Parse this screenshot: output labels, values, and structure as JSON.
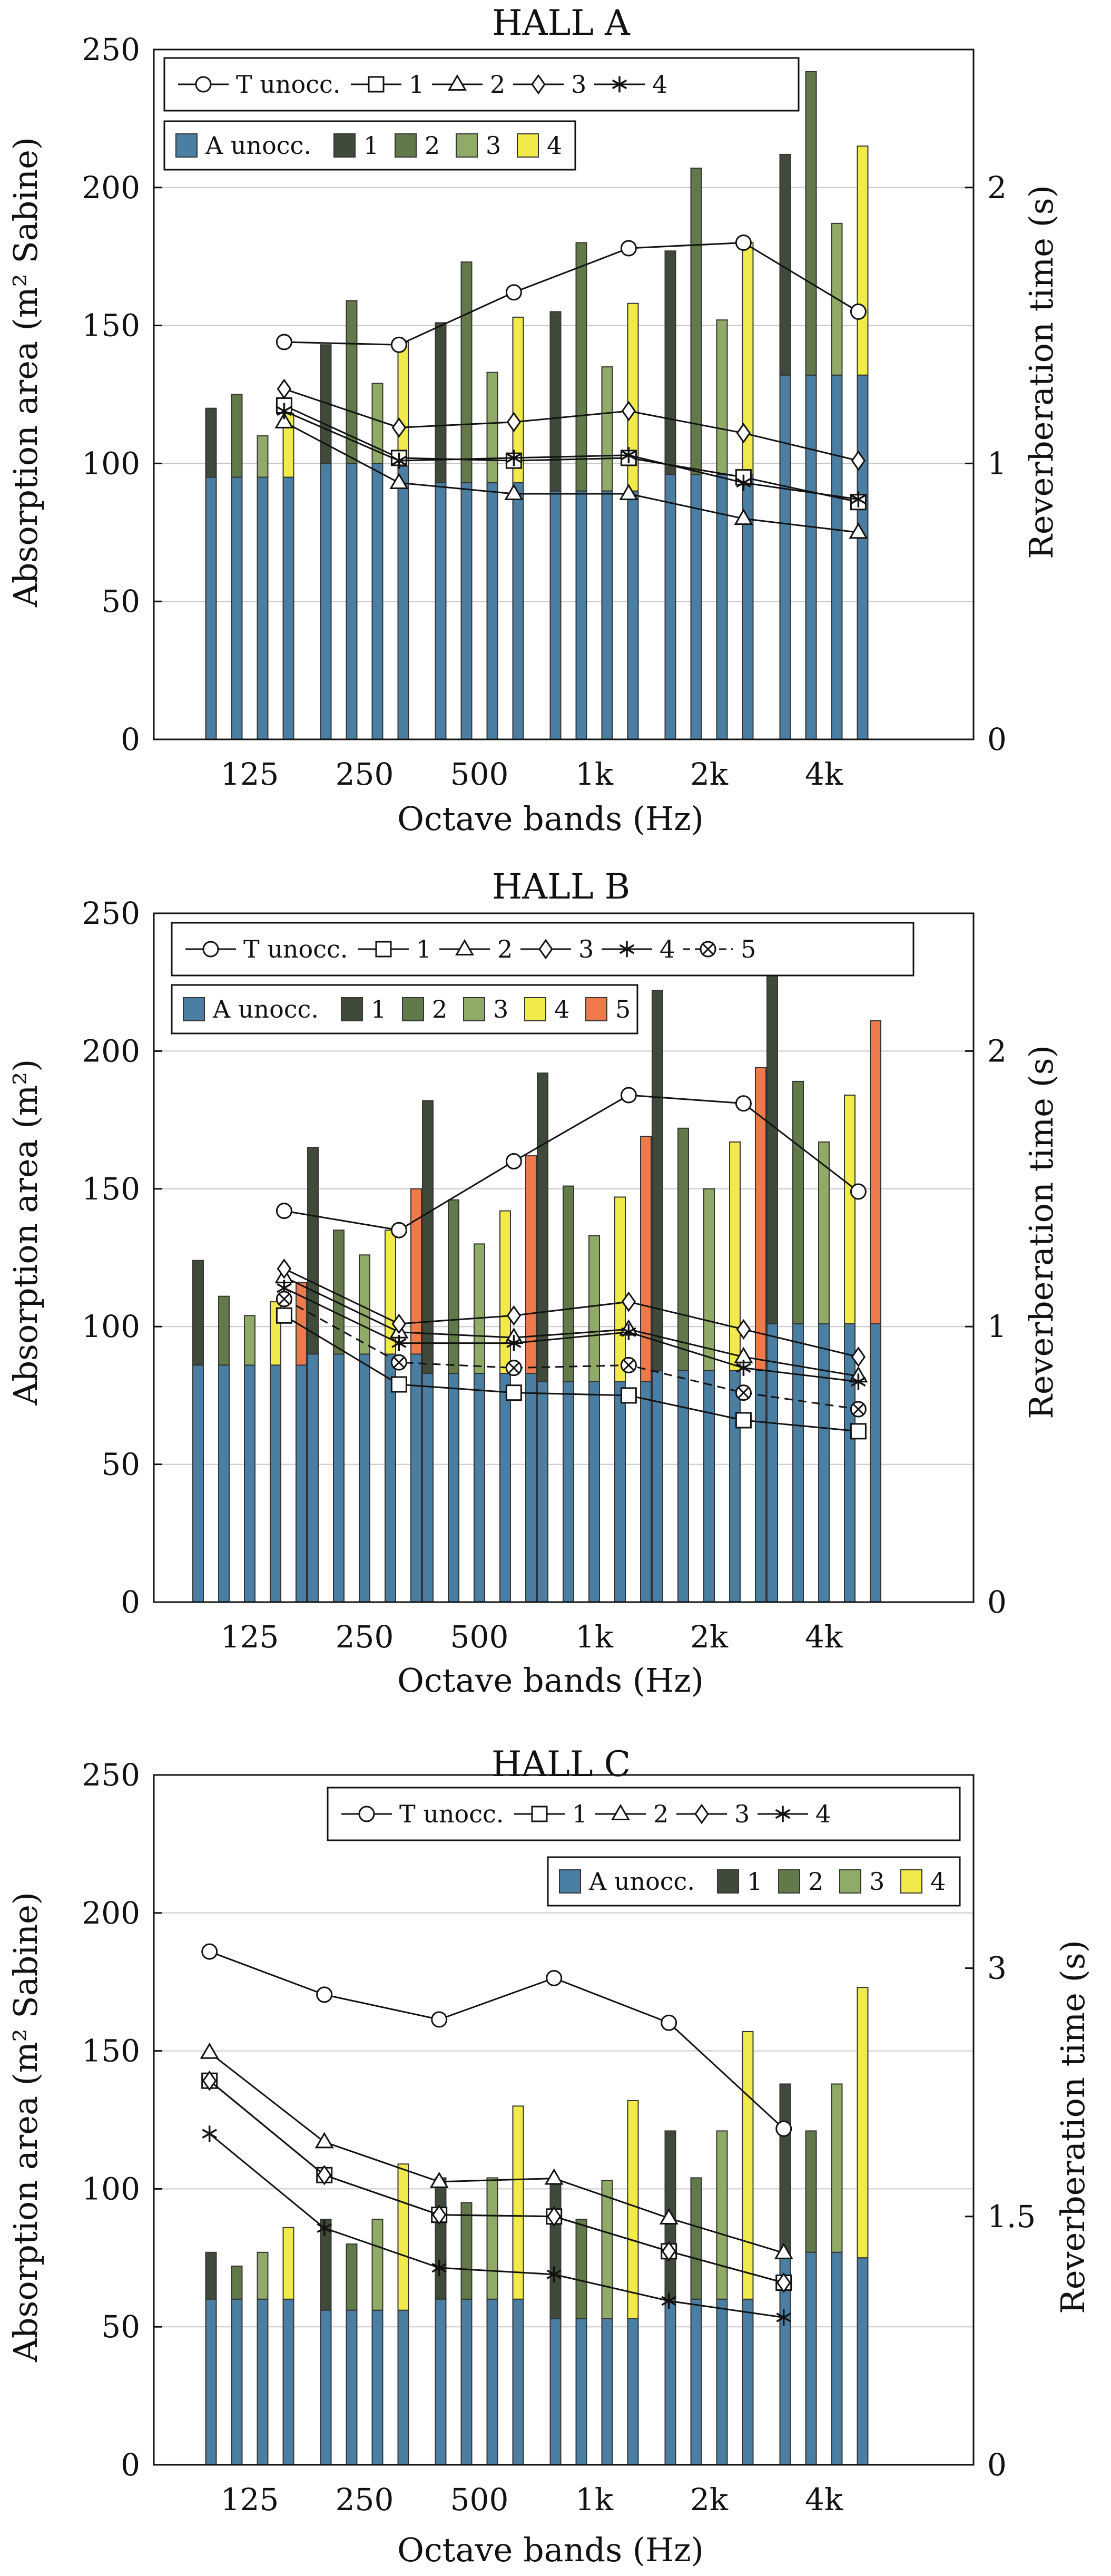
{
  "colors": {
    "A unocc.": "#4a7fa3",
    "1": "#3f4a3a",
    "2": "#627a4a",
    "3": "#90aa68",
    "4": "#f2ea4b",
    "5": "#ee7a4c",
    "grid": "#c7c7c7"
  },
  "x_label": "Octave bands (Hz)",
  "chart_data": [
    {
      "type": "bar",
      "title": "HALL A",
      "categories": [
        "125",
        "250",
        "500",
        "1k",
        "2k",
        "4k"
      ],
      "ylabel": "Absorption area (m² Sabine)",
      "ylabel2": "Reverberation time (s)",
      "ylim": [
        0,
        250
      ],
      "yticks": [
        0,
        50,
        100,
        150,
        200,
        250
      ],
      "y2lim": [
        0,
        2.5
      ],
      "y2ticks": [
        0,
        1,
        2
      ],
      "grid": true,
      "bar_legend": {
        "placement": "top-left",
        "entries": [
          "A unocc.",
          "1",
          "2",
          "3",
          "4"
        ]
      },
      "line_legend": {
        "placement": "top-left",
        "entries": [
          "T unocc.",
          "1",
          "2",
          "3",
          "4"
        ]
      },
      "bar_series": [
        {
          "name": "1",
          "base": [
            95,
            100,
            93,
            90,
            96,
            132
          ],
          "total": [
            120,
            143,
            151,
            155,
            177,
            212
          ]
        },
        {
          "name": "2",
          "base": [
            95,
            100,
            93,
            90,
            96,
            132
          ],
          "total": [
            125,
            159,
            173,
            180,
            207,
            242
          ]
        },
        {
          "name": "3",
          "base": [
            95,
            100,
            93,
            90,
            96,
            132
          ],
          "total": [
            110,
            129,
            133,
            135,
            152,
            187
          ]
        },
        {
          "name": "4",
          "base": [
            95,
            99,
            93,
            90,
            96,
            132
          ],
          "total": [
            118,
            144,
            153,
            158,
            180,
            215
          ]
        }
      ],
      "line_x": [
        0.3,
        1.3,
        2.3,
        3.3,
        4.3,
        5.3
      ],
      "line_series": [
        {
          "name": "T unocc.",
          "marker": "circle",
          "dash": false,
          "values": [
            1.44,
            1.43,
            1.62,
            1.78,
            1.8,
            1.55
          ]
        },
        {
          "name": "1",
          "marker": "square",
          "dash": false,
          "values": [
            1.21,
            1.02,
            1.01,
            1.02,
            0.95,
            0.86
          ]
        },
        {
          "name": "2",
          "marker": "triangle",
          "dash": false,
          "values": [
            1.15,
            0.93,
            0.89,
            0.89,
            0.8,
            0.75
          ]
        },
        {
          "name": "3",
          "marker": "diamond",
          "dash": false,
          "values": [
            1.27,
            1.13,
            1.15,
            1.19,
            1.11,
            1.01
          ]
        },
        {
          "name": "4",
          "marker": "star",
          "dash": false,
          "values": [
            1.19,
            1.01,
            1.02,
            1.03,
            0.93,
            0.87
          ]
        }
      ]
    },
    {
      "type": "bar",
      "title": "HALL B",
      "categories": [
        "125",
        "250",
        "500",
        "1k",
        "2k",
        "4k"
      ],
      "ylabel": "Absorption area (m²)",
      "ylabel2": "Reverberation time (s)",
      "ylim": [
        0,
        250
      ],
      "yticks": [
        0,
        50,
        100,
        150,
        200,
        250
      ],
      "y2lim": [
        0,
        2.5
      ],
      "y2ticks": [
        0,
        1,
        2
      ],
      "grid": true,
      "bar_legend": {
        "placement": "top-left",
        "entries": [
          "A unocc.",
          "1",
          "2",
          "3",
          "4",
          "5"
        ]
      },
      "line_legend": {
        "placement": "top-left",
        "entries": [
          "T unocc.",
          "1",
          "2",
          "3",
          "4",
          "5"
        ]
      },
      "bar_series": [
        {
          "name": "1",
          "base": [
            86,
            90,
            83,
            80,
            84,
            101
          ],
          "total": [
            124,
            165,
            182,
            192,
            222,
            228
          ]
        },
        {
          "name": "2",
          "base": [
            86,
            90,
            83,
            80,
            84,
            101
          ],
          "total": [
            111,
            135,
            146,
            151,
            172,
            189
          ]
        },
        {
          "name": "3",
          "base": [
            86,
            90,
            83,
            80,
            84,
            101
          ],
          "total": [
            104,
            126,
            130,
            133,
            150,
            167
          ]
        },
        {
          "name": "4",
          "base": [
            86,
            90,
            83,
            80,
            84,
            101
          ],
          "total": [
            109,
            135,
            142,
            147,
            167,
            184
          ]
        },
        {
          "name": "5",
          "base": [
            86,
            90,
            83,
            80,
            84,
            101
          ],
          "total": [
            116,
            150,
            162,
            169,
            194,
            211
          ]
        }
      ],
      "line_x": [
        0.3,
        1.3,
        2.3,
        3.3,
        4.3,
        5.3
      ],
      "line_series": [
        {
          "name": "T unocc.",
          "marker": "circle",
          "dash": false,
          "values": [
            1.42,
            1.35,
            1.6,
            1.84,
            1.81,
            1.49
          ]
        },
        {
          "name": "1",
          "marker": "square",
          "dash": false,
          "values": [
            1.04,
            0.79,
            0.76,
            0.75,
            0.66,
            0.62
          ]
        },
        {
          "name": "2",
          "marker": "triangle",
          "dash": false,
          "values": [
            1.18,
            0.98,
            0.96,
            0.99,
            0.89,
            0.82
          ]
        },
        {
          "name": "3",
          "marker": "diamond",
          "dash": false,
          "values": [
            1.21,
            1.01,
            1.04,
            1.09,
            0.99,
            0.89
          ]
        },
        {
          "name": "4",
          "marker": "star",
          "dash": false,
          "values": [
            1.14,
            0.94,
            0.94,
            0.98,
            0.85,
            0.8
          ]
        },
        {
          "name": "5",
          "marker": "circlex",
          "dash": true,
          "values": [
            1.1,
            0.87,
            0.85,
            0.86,
            0.76,
            0.7
          ]
        }
      ]
    },
    {
      "type": "bar",
      "title": "HALL C",
      "categories": [
        "125",
        "250",
        "500",
        "1k",
        "2k",
        "4k"
      ],
      "ylabel": "Absorption area (m² Sabine)",
      "ylabel2": "Reverberation time (s)",
      "ylim": [
        0,
        250
      ],
      "yticks": [
        0,
        50,
        100,
        150,
        200,
        250
      ],
      "y2lim": [
        0,
        4.167
      ],
      "y2ticks": [
        0,
        1.5,
        3
      ],
      "y2ticklabels": [
        "0",
        "1.5",
        "3"
      ],
      "grid": true,
      "bar_legend": {
        "placement": "top-right",
        "entries": [
          "A unocc.",
          "1",
          "2",
          "3",
          "4"
        ]
      },
      "line_legend": {
        "placement": "top-right",
        "entries": [
          "T unocc.",
          "1",
          "2",
          "3",
          "4"
        ]
      },
      "bar_series": [
        {
          "name": "1",
          "base": [
            60,
            56,
            60,
            53,
            60,
            77
          ],
          "total": [
            77,
            89,
            104,
            103,
            121,
            138
          ]
        },
        {
          "name": "2",
          "base": [
            60,
            56,
            60,
            53,
            60,
            77
          ],
          "total": [
            72,
            80,
            95,
            89,
            104,
            121
          ]
        },
        {
          "name": "3",
          "base": [
            60,
            56,
            60,
            53,
            60,
            77
          ],
          "total": [
            77,
            89,
            104,
            103,
            121,
            138
          ]
        },
        {
          "name": "4",
          "base": [
            60,
            56,
            60,
            53,
            60,
            75
          ],
          "total": [
            86,
            109,
            130,
            132,
            157,
            173
          ]
        }
      ],
      "line_x": [
        -0.35,
        0.65,
        1.65,
        2.65,
        3.65,
        4.65
      ],
      "line_series": [
        {
          "name": "T unocc.",
          "marker": "circle",
          "dash": false,
          "values": [
            3.1,
            2.84,
            2.69,
            2.94,
            2.67,
            2.03
          ]
        },
        {
          "name": "1",
          "marker": "square",
          "dash": false,
          "values": [
            2.32,
            1.75,
            1.51,
            1.5,
            1.29,
            1.1
          ]
        },
        {
          "name": "2",
          "marker": "triangle",
          "dash": false,
          "values": [
            2.49,
            1.95,
            1.71,
            1.73,
            1.49,
            1.28
          ]
        },
        {
          "name": "3",
          "marker": "diamond",
          "dash": false,
          "values": [
            2.32,
            1.75,
            1.51,
            1.5,
            1.29,
            1.1
          ]
        },
        {
          "name": "4",
          "marker": "star",
          "dash": false,
          "values": [
            2.0,
            1.43,
            1.19,
            1.15,
            0.99,
            0.89
          ]
        }
      ]
    }
  ]
}
